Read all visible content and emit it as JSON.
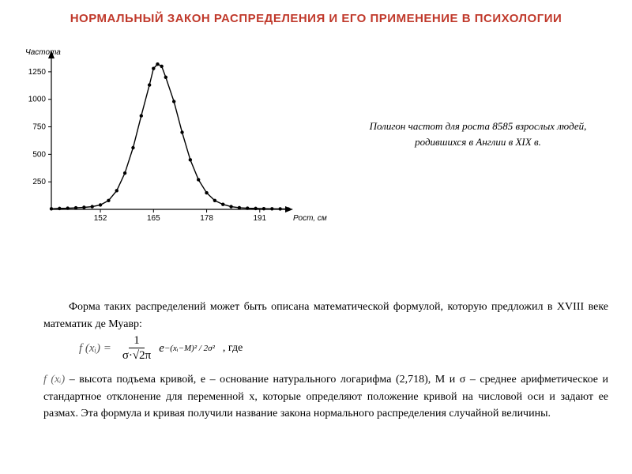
{
  "title": "НОРМАЛЬНЫЙ ЗАКОН РАСПРЕДЕЛЕНИЯ И ЕГО ПРИМЕНЕНИЕ В ПСИХОЛОГИИ",
  "caption": {
    "line1": "Полигон частот для роста 8585 взрослых людей,",
    "line2": "родившихся в Англии в XIX в."
  },
  "chart": {
    "type": "line",
    "ylabel": "Частота",
    "xlabel": "Рост, см",
    "xlim": [
      140,
      198
    ],
    "ylim": [
      0,
      1400
    ],
    "xticks": [
      152,
      165,
      178,
      191
    ],
    "yticks": [
      250,
      500,
      750,
      1000,
      1250
    ],
    "line_color": "#000000",
    "marker_color": "#000000",
    "background_color": "#ffffff",
    "points": [
      [
        140,
        5
      ],
      [
        142,
        8
      ],
      [
        144,
        10
      ],
      [
        146,
        14
      ],
      [
        148,
        18
      ],
      [
        150,
        25
      ],
      [
        152,
        40
      ],
      [
        154,
        80
      ],
      [
        156,
        170
      ],
      [
        158,
        330
      ],
      [
        160,
        560
      ],
      [
        162,
        850
      ],
      [
        164,
        1130
      ],
      [
        165,
        1280
      ],
      [
        166,
        1320
      ],
      [
        167,
        1300
      ],
      [
        168,
        1200
      ],
      [
        170,
        980
      ],
      [
        172,
        700
      ],
      [
        174,
        450
      ],
      [
        176,
        270
      ],
      [
        178,
        150
      ],
      [
        180,
        80
      ],
      [
        182,
        45
      ],
      [
        184,
        25
      ],
      [
        186,
        15
      ],
      [
        188,
        10
      ],
      [
        190,
        8
      ],
      [
        192,
        6
      ],
      [
        194,
        5
      ],
      [
        196,
        4
      ],
      [
        198,
        3
      ]
    ]
  },
  "paragraph1": "Форма таких распределений может быть описана математической формулой, которую предложил в XVIII веке математик де Муавр:",
  "formula": {
    "lhs": "f (xᵢ) =",
    "num": "1",
    "den": "σ·√2π",
    "e": "e",
    "exp": "−(xᵢ−M)² / 2σ²",
    "gde": ", где"
  },
  "paragraph2_prefix": "f (xᵢ)",
  "paragraph2": " – высота подъема кривой, e – основание натурального логарифма (2,718), M и σ – среднее арифметическое и стандартное отклонение для переменной x, которые определяют положение кривой на числовой оси и задают ее размах. Эта формула и кривая получили название закона нормального распределения случайной величины.",
  "colors": {
    "title": "#c0392b",
    "text": "#000000",
    "bg": "#ffffff"
  }
}
